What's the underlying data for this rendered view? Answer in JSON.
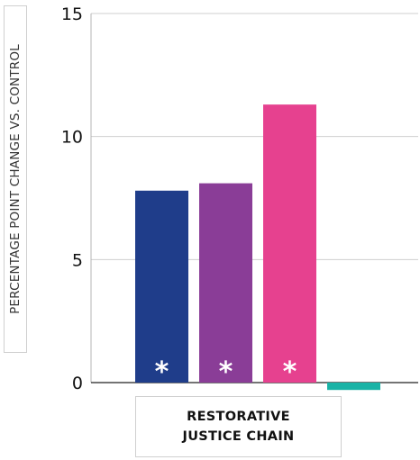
{
  "chart_data": {
    "type": "bar",
    "title": "",
    "ylabel": "PERCENTAGE POINT CHANGE VS. CONTROL",
    "xlabel_lines": [
      "RESTORATIVE",
      "JUSTICE CHAIN"
    ],
    "ylim": [
      0,
      15
    ],
    "yticks": [
      {
        "value": 0,
        "label": "0"
      },
      {
        "value": 5,
        "label": "5"
      },
      {
        "value": 10,
        "label": "10"
      },
      {
        "value": 15,
        "label": "15"
      }
    ],
    "grid": true,
    "series": [
      {
        "value": 7.8,
        "color": "#1f3d8a",
        "significance": "*"
      },
      {
        "value": 8.1,
        "color": "#8a3d97",
        "significance": "*"
      },
      {
        "value": 11.3,
        "color": "#e6418f",
        "significance": "*"
      },
      {
        "value": -0.3,
        "color": "#1ab3a6",
        "significance": ""
      }
    ]
  }
}
